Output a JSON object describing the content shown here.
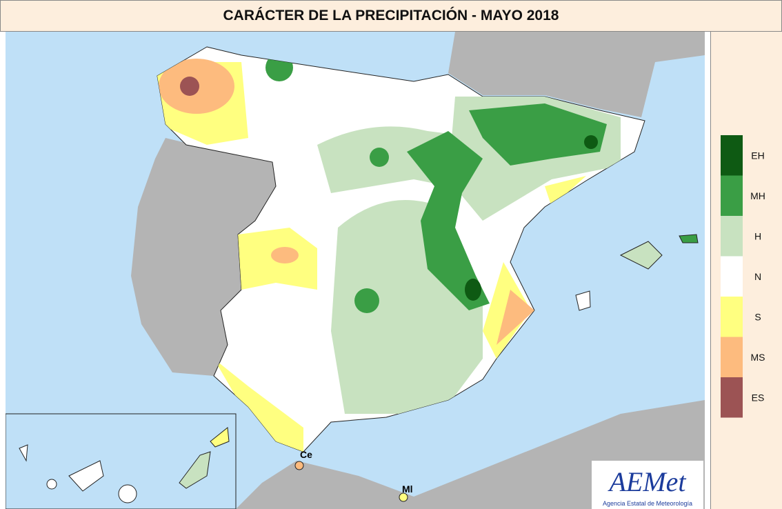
{
  "title": "CARÁCTER DE LA PRECIPITACIÓN - MAYO 2018",
  "legend": {
    "items": [
      {
        "label": "EH",
        "color": "#0e5a13"
      },
      {
        "label": "MH",
        "color": "#3a9e45"
      },
      {
        "label": "H",
        "color": "#c8e2c0"
      },
      {
        "label": "N",
        "color": "#ffffff"
      },
      {
        "label": "S",
        "color": "#ffff80"
      },
      {
        "label": "MS",
        "color": "#fdbb7e"
      },
      {
        "label": "ES",
        "color": "#9c5354"
      }
    ]
  },
  "places": [
    {
      "label": "Ce"
    },
    {
      "label": "Ml"
    }
  ],
  "logo": {
    "text": "AEMet",
    "subtitle": "Agencia Estatal de Meteorología"
  }
}
